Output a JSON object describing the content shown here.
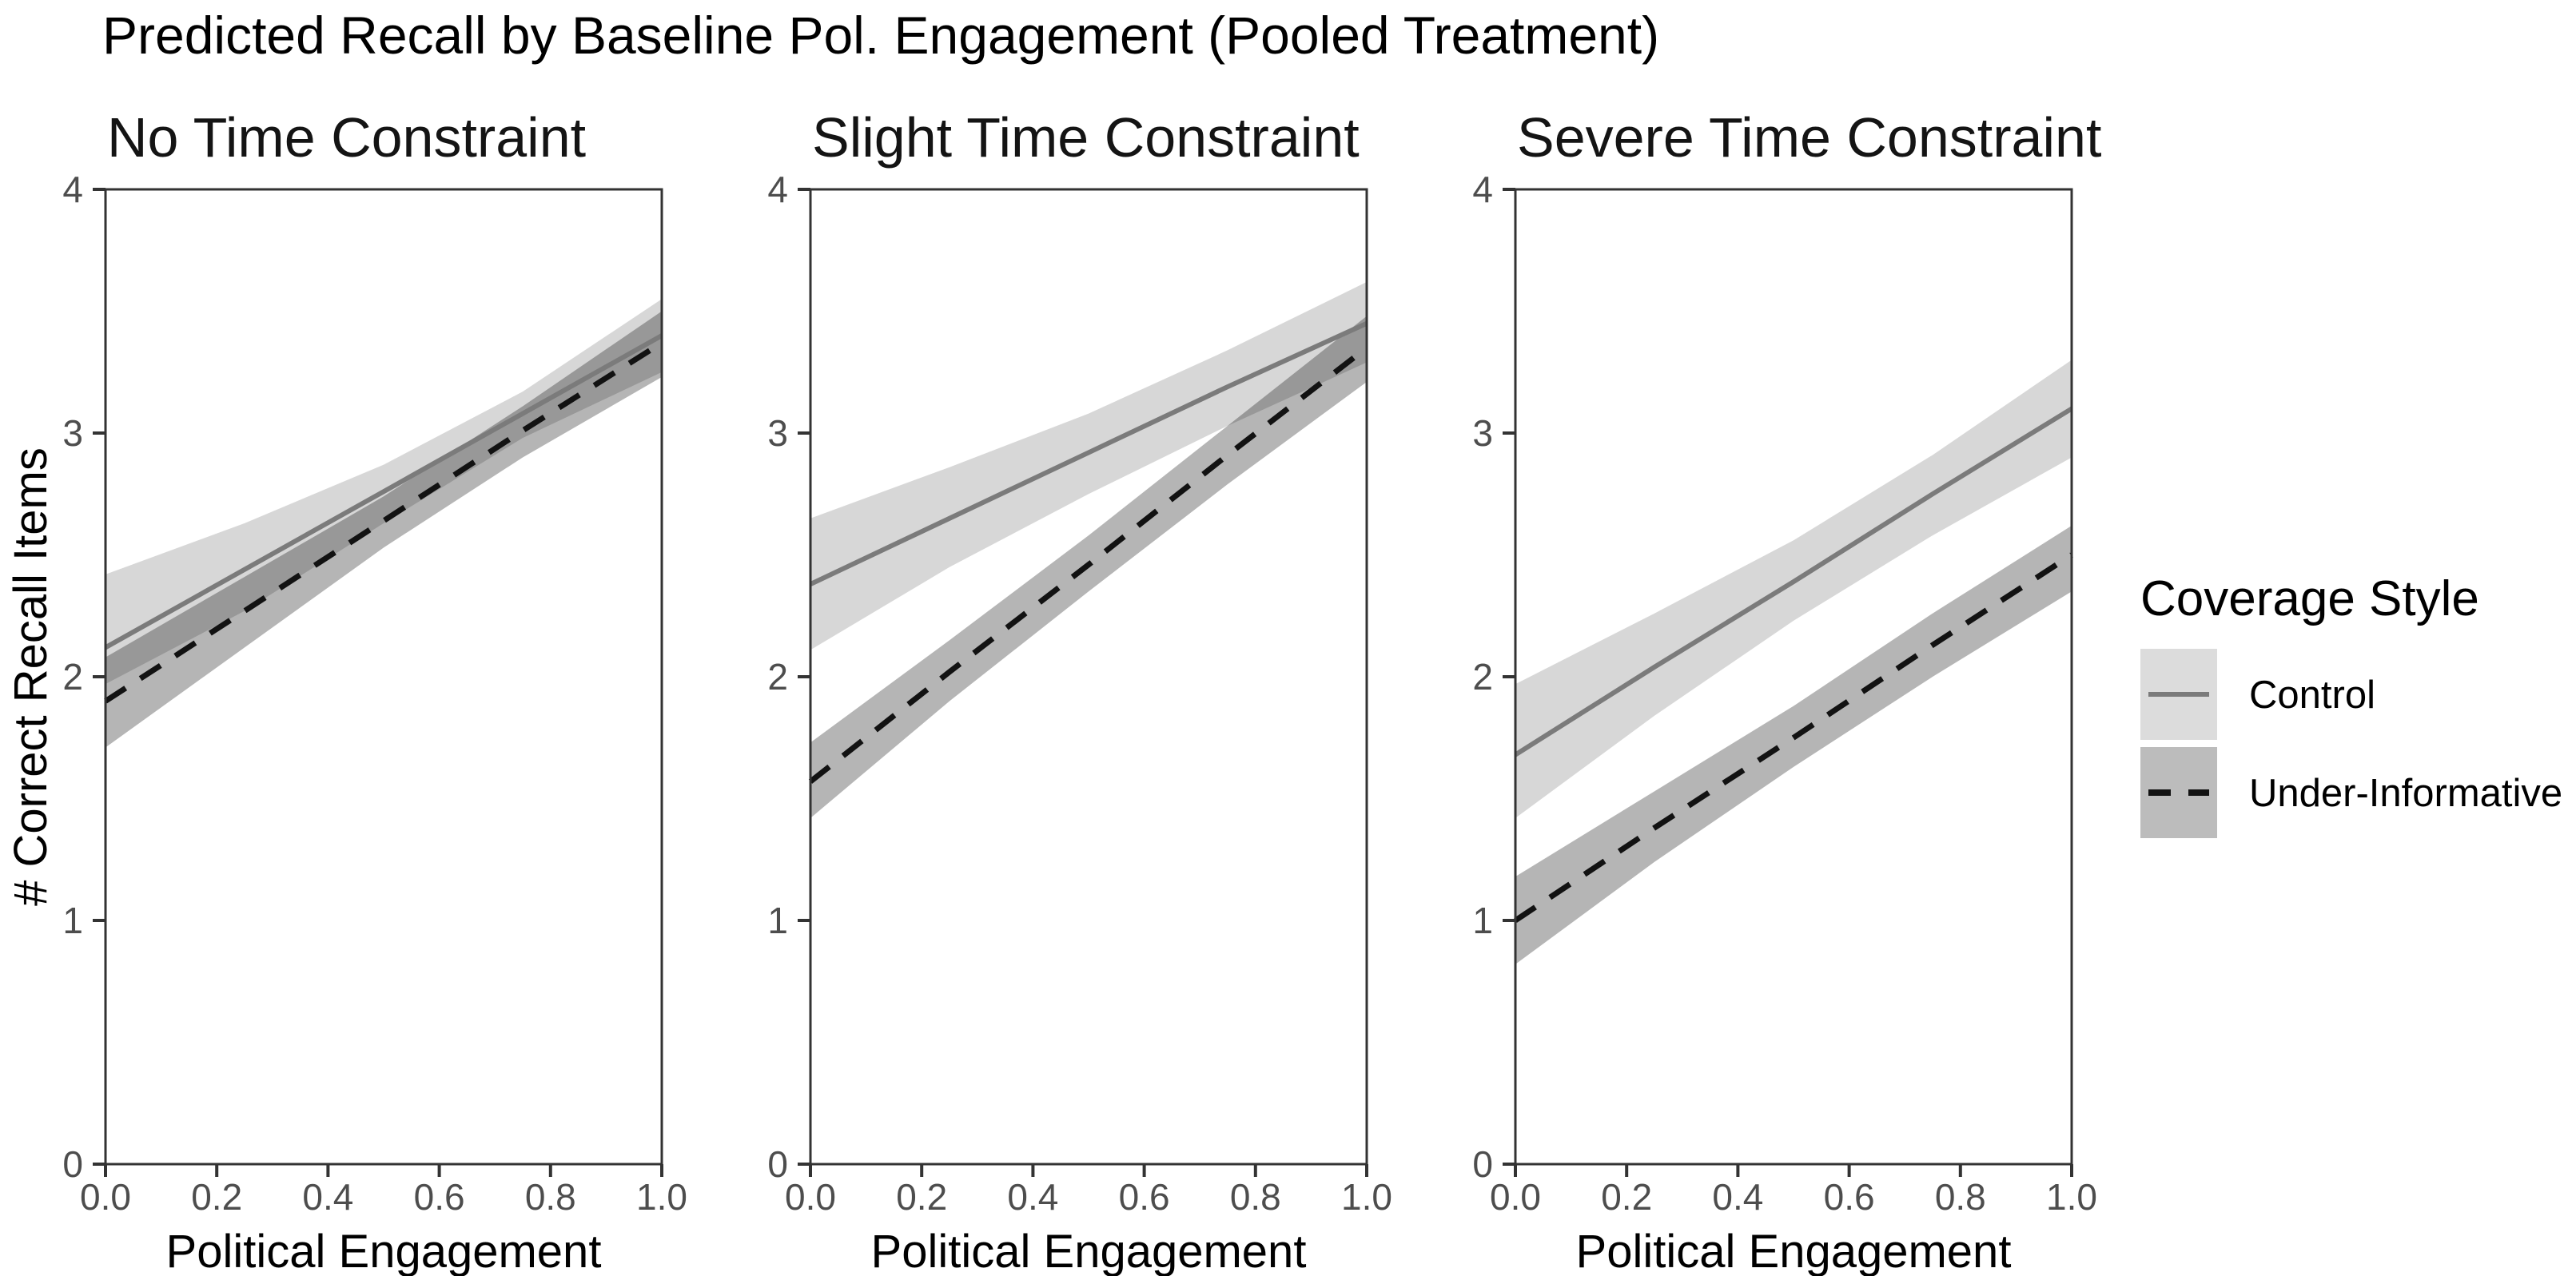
{
  "title": "Predicted Recall by Baseline Pol. Engagement (Pooled Treatment)",
  "axes": {
    "x_label": "Political Engagement",
    "y_label": "# Correct Recall Items",
    "x_tick_labels": [
      "0.0",
      "0.2",
      "0.4",
      "0.6",
      "0.8",
      "1.0"
    ],
    "x_tick_values": [
      0,
      0.2,
      0.4,
      0.6,
      0.8,
      1.0
    ],
    "y_tick_labels": [
      "0",
      "1",
      "2",
      "3",
      "4"
    ],
    "y_tick_values": [
      0,
      1,
      2,
      3,
      4
    ]
  },
  "legend": {
    "title": "Coverage Style",
    "items": [
      {
        "label": "Control",
        "line_style": "solid"
      },
      {
        "label": "Under-Informative",
        "line_style": "dashed"
      }
    ]
  },
  "colors": {
    "axis": "#333333",
    "tick_label": "#4d4d4d",
    "text": "#000000",
    "control_line": "#7b7b7b",
    "under_informative_line": "#121212",
    "control_ribbon": "rgba(0,0,0,0.155)",
    "under_informative_ribbon": "rgba(0,0,0,0.29)",
    "control_key_fill": "#dcdcdc",
    "under_informative_key_fill": "#bcbcbc"
  },
  "chart_data": {
    "type": "line",
    "x": [
      0,
      0.25,
      0.5,
      0.75,
      1.0
    ],
    "xlim": [
      0,
      1
    ],
    "ylim": [
      0,
      4
    ],
    "grid": "off",
    "legend_position": "right",
    "title": "Predicted Recall by Baseline Pol. Engagement (Pooled Treatment)",
    "xlabel": "Political Engagement",
    "ylabel": "# Correct Recall Items",
    "panels": [
      {
        "title": "No Time Constraint",
        "series": [
          {
            "name": "Control",
            "style": "solid",
            "line": [
              2.12,
              2.44,
              2.76,
              3.08,
              3.4
            ],
            "upper": [
              2.42,
              2.63,
              2.87,
              3.17,
              3.55
            ],
            "lower": [
              1.97,
              2.27,
              2.63,
              2.98,
              3.25
            ]
          },
          {
            "name": "Under-Informative",
            "style": "dashed",
            "line": [
              1.9,
              2.27,
              2.64,
              3.01,
              3.37
            ],
            "upper": [
              2.08,
              2.41,
              2.74,
              3.11,
              3.5
            ],
            "lower": [
              1.71,
              2.12,
              2.53,
              2.9,
              3.23
            ]
          }
        ]
      },
      {
        "title": "Slight Time Constraint",
        "series": [
          {
            "name": "Control",
            "style": "solid",
            "line": [
              2.38,
              2.65,
              2.92,
              3.19,
              3.45
            ],
            "upper": [
              2.65,
              2.86,
              3.08,
              3.34,
              3.62
            ],
            "lower": [
              2.11,
              2.45,
              2.75,
              3.03,
              3.29
            ]
          },
          {
            "name": "Under-Informative",
            "style": "dashed",
            "line": [
              1.57,
              2.02,
              2.46,
              2.91,
              3.35
            ],
            "upper": [
              1.73,
              2.15,
              2.58,
              3.03,
              3.48
            ],
            "lower": [
              1.42,
              1.9,
              2.35,
              2.79,
              3.21
            ]
          }
        ]
      },
      {
        "title": "Severe Time Constraint",
        "series": [
          {
            "name": "Control",
            "style": "solid",
            "line": [
              1.68,
              2.04,
              2.39,
              2.75,
              3.1
            ],
            "upper": [
              1.97,
              2.26,
              2.56,
              2.91,
              3.3
            ],
            "lower": [
              1.42,
              1.84,
              2.23,
              2.58,
              2.9
            ]
          },
          {
            "name": "Under-Informative",
            "style": "dashed",
            "line": [
              1.0,
              1.38,
              1.75,
              2.13,
              2.5
            ],
            "upper": [
              1.18,
              1.53,
              1.88,
              2.26,
              2.62
            ],
            "lower": [
              0.82,
              1.24,
              1.63,
              2.0,
              2.35
            ]
          }
        ]
      }
    ]
  }
}
